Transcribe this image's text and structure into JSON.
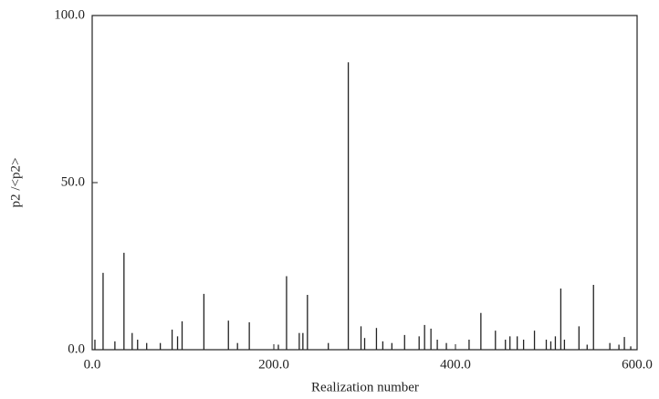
{
  "chart_data": {
    "type": "stem",
    "x_label": "Realization number",
    "y_label": "p2 /<p2>",
    "x": [
      3,
      12,
      25,
      35,
      44,
      50,
      60,
      75,
      88,
      94,
      99,
      123,
      150,
      160,
      173,
      205,
      214,
      228,
      232,
      237,
      260,
      282,
      296,
      300,
      313,
      320,
      330,
      344,
      360,
      366,
      373,
      380,
      390,
      415,
      428,
      444,
      455,
      460,
      468,
      475,
      487,
      500,
      505,
      510,
      516,
      520,
      536,
      545,
      552,
      570,
      580,
      586,
      593
    ],
    "values": [
      3,
      23,
      2.5,
      29,
      5,
      3,
      2,
      2,
      6,
      4,
      8.5,
      16.7,
      8.7,
      2,
      8.2,
      1.5,
      22,
      5,
      5,
      16.4,
      2,
      86,
      7,
      3.5,
      6.5,
      2.5,
      2,
      4.4,
      4,
      7.4,
      6.3,
      3,
      2,
      3,
      11,
      5.7,
      3,
      4,
      4,
      3,
      5.7,
      3,
      2.5,
      4,
      18.3,
      3,
      7,
      1.5,
      19.4,
      2,
      1.5,
      3.8,
      1
    ],
    "color": "#222222",
    "xlim": [
      0,
      600
    ],
    "xticks": [
      {
        "value": 0,
        "label": "0.0"
      },
      {
        "value": 200,
        "label": "200.0"
      },
      {
        "value": 400,
        "label": "400.0"
      },
      {
        "value": 600,
        "label": "600.0"
      }
    ],
    "ylim": [
      0,
      100
    ],
    "yticks": [
      {
        "value": 0,
        "label": "0.0"
      },
      {
        "value": 50,
        "label": "50.0"
      },
      {
        "value": 100,
        "label": "100.0"
      }
    ]
  }
}
